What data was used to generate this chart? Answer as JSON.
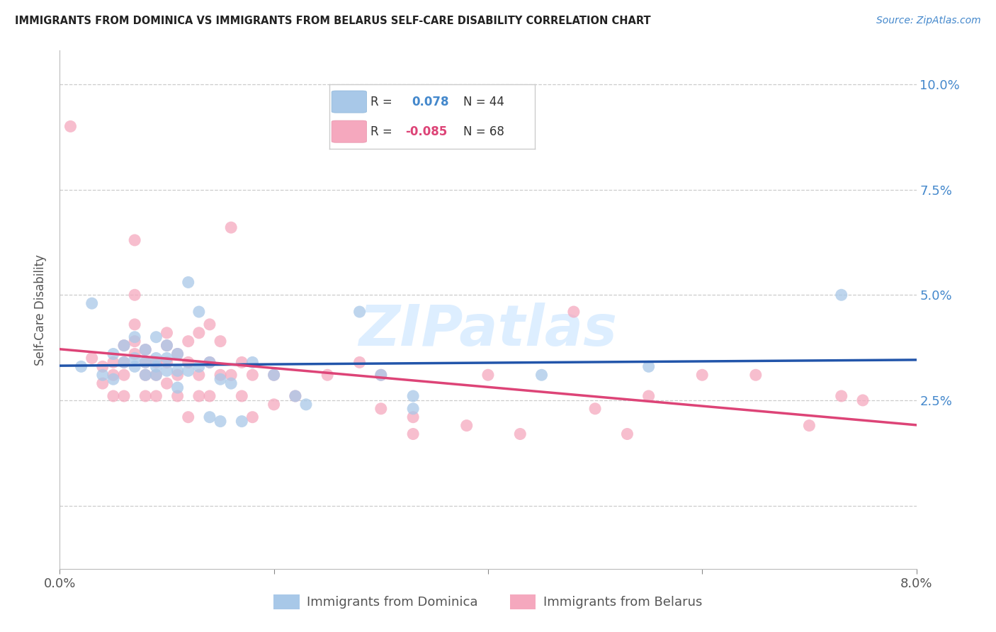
{
  "title": "IMMIGRANTS FROM DOMINICA VS IMMIGRANTS FROM BELARUS SELF-CARE DISABILITY CORRELATION CHART",
  "source": "Source: ZipAtlas.com",
  "ylabel": "Self-Care Disability",
  "x_min": 0.0,
  "x_max": 0.08,
  "y_min": -0.015,
  "y_max": 0.108,
  "x_ticks": [
    0.0,
    0.02,
    0.04,
    0.06,
    0.08
  ],
  "x_tick_labels": [
    "0.0%",
    "",
    "",
    "",
    "8.0%"
  ],
  "y_ticks": [
    0.0,
    0.025,
    0.05,
    0.075,
    0.1
  ],
  "y_tick_labels_right": [
    "",
    "2.5%",
    "5.0%",
    "7.5%",
    "10.0%"
  ],
  "legend_blue_r_val": "0.078",
  "legend_blue_n_val": "N = 44",
  "legend_pink_r_val": "-0.085",
  "legend_pink_n_val": "N = 68",
  "blue_dot_color": "#a8c8e8",
  "pink_dot_color": "#f5a8be",
  "blue_line_color": "#2255aa",
  "pink_line_color": "#dd4477",
  "blue_r_text_color": "#4488cc",
  "pink_r_text_color": "#dd4477",
  "right_axis_color": "#4488cc",
  "watermark_color": "#ddeeff",
  "blue_dots": [
    [
      0.002,
      0.033
    ],
    [
      0.003,
      0.048
    ],
    [
      0.004,
      0.031
    ],
    [
      0.005,
      0.036
    ],
    [
      0.005,
      0.03
    ],
    [
      0.006,
      0.038
    ],
    [
      0.006,
      0.034
    ],
    [
      0.007,
      0.04
    ],
    [
      0.007,
      0.035
    ],
    [
      0.007,
      0.033
    ],
    [
      0.008,
      0.037
    ],
    [
      0.008,
      0.034
    ],
    [
      0.008,
      0.031
    ],
    [
      0.009,
      0.04
    ],
    [
      0.009,
      0.035
    ],
    [
      0.009,
      0.033
    ],
    [
      0.009,
      0.031
    ],
    [
      0.01,
      0.038
    ],
    [
      0.01,
      0.035
    ],
    [
      0.01,
      0.032
    ],
    [
      0.011,
      0.036
    ],
    [
      0.011,
      0.032
    ],
    [
      0.011,
      0.028
    ],
    [
      0.012,
      0.053
    ],
    [
      0.012,
      0.032
    ],
    [
      0.013,
      0.046
    ],
    [
      0.013,
      0.033
    ],
    [
      0.014,
      0.034
    ],
    [
      0.014,
      0.021
    ],
    [
      0.015,
      0.03
    ],
    [
      0.015,
      0.02
    ],
    [
      0.016,
      0.029
    ],
    [
      0.017,
      0.02
    ],
    [
      0.018,
      0.034
    ],
    [
      0.02,
      0.031
    ],
    [
      0.022,
      0.026
    ],
    [
      0.023,
      0.024
    ],
    [
      0.028,
      0.046
    ],
    [
      0.03,
      0.031
    ],
    [
      0.033,
      0.026
    ],
    [
      0.033,
      0.023
    ],
    [
      0.045,
      0.031
    ],
    [
      0.055,
      0.033
    ],
    [
      0.073,
      0.05
    ]
  ],
  "pink_dots": [
    [
      0.001,
      0.09
    ],
    [
      0.003,
      0.035
    ],
    [
      0.004,
      0.033
    ],
    [
      0.004,
      0.029
    ],
    [
      0.005,
      0.034
    ],
    [
      0.005,
      0.031
    ],
    [
      0.005,
      0.026
    ],
    [
      0.006,
      0.038
    ],
    [
      0.006,
      0.034
    ],
    [
      0.006,
      0.031
    ],
    [
      0.006,
      0.026
    ],
    [
      0.007,
      0.063
    ],
    [
      0.007,
      0.05
    ],
    [
      0.007,
      0.043
    ],
    [
      0.007,
      0.039
    ],
    [
      0.007,
      0.036
    ],
    [
      0.008,
      0.037
    ],
    [
      0.008,
      0.034
    ],
    [
      0.008,
      0.031
    ],
    [
      0.008,
      0.026
    ],
    [
      0.009,
      0.034
    ],
    [
      0.009,
      0.031
    ],
    [
      0.009,
      0.026
    ],
    [
      0.01,
      0.041
    ],
    [
      0.01,
      0.038
    ],
    [
      0.01,
      0.034
    ],
    [
      0.01,
      0.029
    ],
    [
      0.011,
      0.036
    ],
    [
      0.011,
      0.031
    ],
    [
      0.011,
      0.026
    ],
    [
      0.012,
      0.039
    ],
    [
      0.012,
      0.034
    ],
    [
      0.012,
      0.021
    ],
    [
      0.013,
      0.041
    ],
    [
      0.013,
      0.031
    ],
    [
      0.013,
      0.026
    ],
    [
      0.014,
      0.043
    ],
    [
      0.014,
      0.034
    ],
    [
      0.014,
      0.026
    ],
    [
      0.015,
      0.039
    ],
    [
      0.015,
      0.031
    ],
    [
      0.016,
      0.066
    ],
    [
      0.016,
      0.031
    ],
    [
      0.017,
      0.034
    ],
    [
      0.017,
      0.026
    ],
    [
      0.018,
      0.031
    ],
    [
      0.018,
      0.021
    ],
    [
      0.02,
      0.031
    ],
    [
      0.02,
      0.024
    ],
    [
      0.022,
      0.026
    ],
    [
      0.025,
      0.031
    ],
    [
      0.028,
      0.034
    ],
    [
      0.03,
      0.031
    ],
    [
      0.03,
      0.023
    ],
    [
      0.033,
      0.021
    ],
    [
      0.033,
      0.017
    ],
    [
      0.038,
      0.019
    ],
    [
      0.04,
      0.031
    ],
    [
      0.043,
      0.017
    ],
    [
      0.048,
      0.046
    ],
    [
      0.05,
      0.023
    ],
    [
      0.053,
      0.017
    ],
    [
      0.055,
      0.026
    ],
    [
      0.06,
      0.031
    ],
    [
      0.065,
      0.031
    ],
    [
      0.07,
      0.019
    ],
    [
      0.073,
      0.026
    ],
    [
      0.075,
      0.025
    ]
  ]
}
